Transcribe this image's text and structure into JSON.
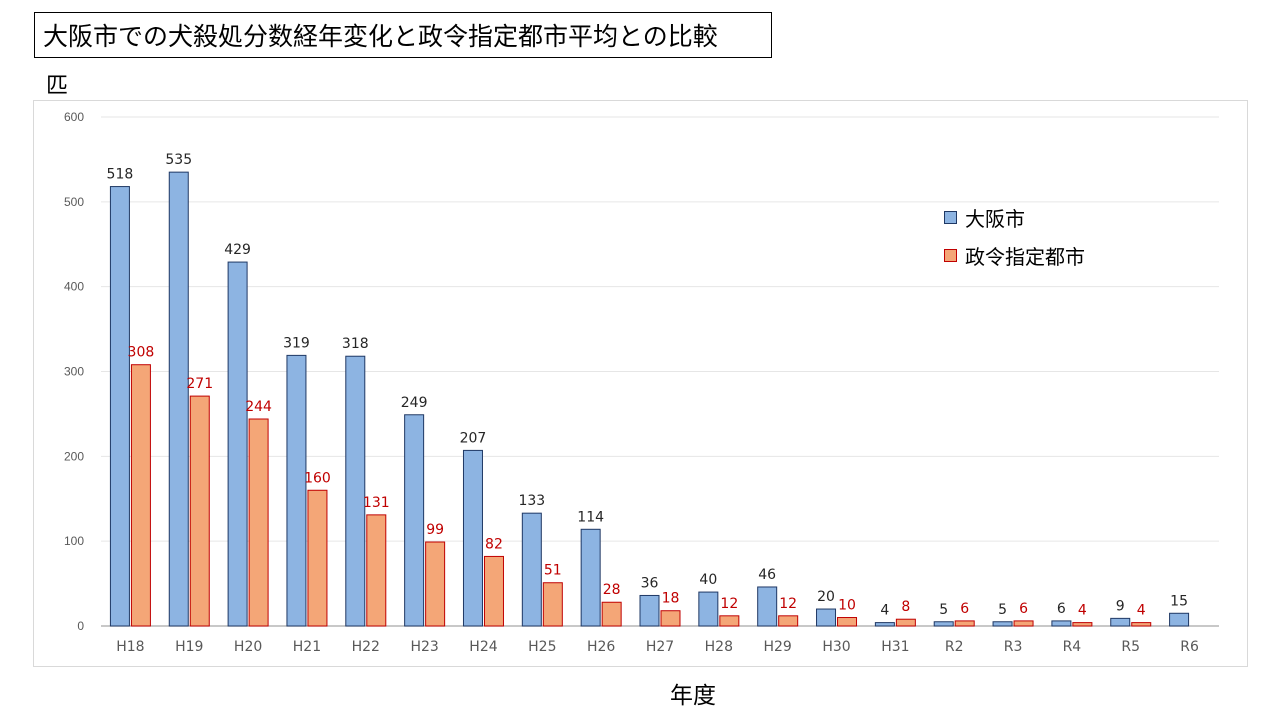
{
  "title": "大阪市での犬殺処分数経年変化と政令指定都市平均との比較",
  "colors": {
    "osaka": "#8db4e2",
    "osaka_border": "#1f3864",
    "seirei": "#f4a677",
    "seirei_border": "#c00000",
    "seirei_label": "#c00000",
    "grid": "#e6e6e6"
  },
  "chart_data": {
    "type": "bar",
    "title": "大阪市での犬殺処分数経年変化と政令指定都市平均との比較",
    "xlabel": "年度",
    "ylabel": "匹",
    "ylim": [
      0,
      600
    ],
    "yticks": [
      0,
      100,
      200,
      300,
      400,
      500,
      600
    ],
    "grid": true,
    "legend_position": "top-right",
    "categories": [
      "H18",
      "H19",
      "H20",
      "H21",
      "H22",
      "H23",
      "H24",
      "H25",
      "H26",
      "H27",
      "H28",
      "H29",
      "H30",
      "H31",
      "R2",
      "R3",
      "R4",
      "R5",
      "R6"
    ],
    "series": [
      {
        "name": "大阪市",
        "values": [
          518,
          535,
          429,
          319,
          318,
          249,
          207,
          133,
          114,
          36,
          40,
          46,
          20,
          4,
          5,
          5,
          6,
          9,
          15
        ]
      },
      {
        "name": "政令指定都市",
        "values": [
          308,
          271,
          244,
          160,
          131,
          99,
          82,
          51,
          28,
          18,
          12,
          12,
          10,
          8,
          6,
          6,
          4,
          4,
          null
        ]
      }
    ]
  }
}
